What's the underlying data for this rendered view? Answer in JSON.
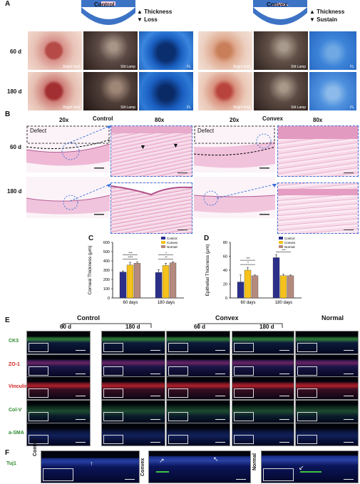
{
  "panels": {
    "A": {
      "letter": "A",
      "control_title": "Control",
      "control_note_1": "Thickness",
      "control_note_2": "Loss",
      "convex_title": "Convex",
      "convex_note_1": "Thickness",
      "convex_note_2": "Sustain",
      "row_labels": [
        "60 d",
        "180 d"
      ],
      "captions": [
        "Bright field",
        "Slit Lamp",
        "FL"
      ]
    },
    "B": {
      "letter": "B",
      "control_title": "Control",
      "convex_title": "Convex",
      "mag_20x": "20x",
      "mag_80x": "80x",
      "row_labels": [
        "60 d",
        "180 d"
      ],
      "defect_label": "Defect"
    },
    "E": {
      "letter": "E",
      "control_title": "Control",
      "convex_title": "Convex",
      "normal_title": "Normal",
      "timepoints": [
        "60 d",
        "180 d",
        "60 d",
        "180 d"
      ],
      "markers": [
        "CK3",
        "ZO-1",
        "Vinculin",
        "Col-V",
        "a-SMA"
      ],
      "marker_colors": [
        "#2e8b2e",
        "#d42020",
        "#d42020",
        "#2e8b2e",
        "#2e8b2e"
      ]
    },
    "F": {
      "letter": "F",
      "marker": "Tuj1",
      "groups": [
        "Control",
        "Convex",
        "Normal"
      ]
    }
  },
  "chart_data": [
    {
      "type": "bar",
      "panel": "C",
      "ylabel": "Corneal Thickness (μm)",
      "ylim": [
        0,
        600
      ],
      "yticks": [
        0,
        100,
        200,
        300,
        400,
        500,
        600
      ],
      "categories": [
        "60 days",
        "180 days"
      ],
      "series": [
        {
          "name": "Control",
          "color": "#2b2f8a",
          "values": [
            280,
            275
          ]
        },
        {
          "name": "Convex",
          "color": "#f5c21b",
          "values": [
            355,
            350
          ]
        },
        {
          "name": "Normal",
          "color": "#b58a7e",
          "values": [
            375,
            378
          ]
        }
      ],
      "errors": [
        [
          12,
          30
        ],
        [
          30,
          25
        ],
        [
          14,
          12
        ]
      ],
      "significance": [
        "****",
        "***",
        "**",
        "*"
      ],
      "legend": "top-right"
    },
    {
      "type": "bar",
      "panel": "D",
      "ylabel": "Epithelial Thickness (μm)",
      "ylim": [
        0,
        80
      ],
      "yticks": [
        0,
        20,
        40,
        60,
        80
      ],
      "categories": [
        "60 days",
        "180 days"
      ],
      "series": [
        {
          "name": "Control",
          "color": "#2b2f8a",
          "values": [
            23,
            58
          ]
        },
        {
          "name": "Convex",
          "color": "#f5c21b",
          "values": [
            40,
            32
          ]
        },
        {
          "name": "Normal",
          "color": "#b58a7e",
          "values": [
            32,
            32
          ]
        }
      ],
      "errors": [
        [
          10,
          4
        ],
        [
          4,
          2
        ],
        [
          1,
          1
        ]
      ],
      "significance": [
        "*",
        "***",
        "***"
      ],
      "legend": "top-right"
    }
  ]
}
